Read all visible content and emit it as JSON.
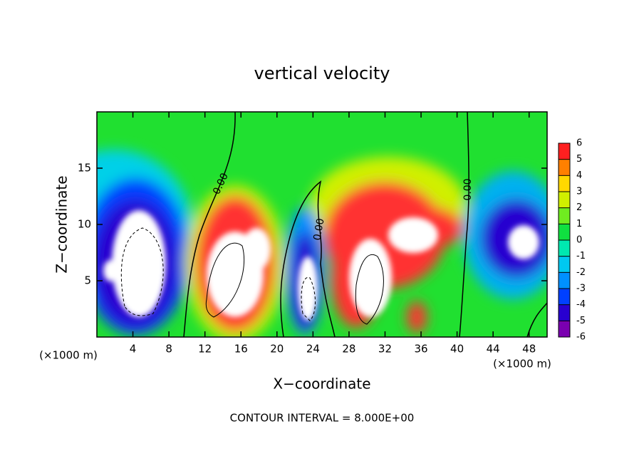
{
  "chart_data": {
    "type": "contour",
    "title": "vertical velocity",
    "xlabel": "X−coordinate",
    "ylabel": "Z−coordinate",
    "xunit": "(×1000 m)",
    "footer": "CONTOUR INTERVAL = 8.000E+00",
    "contour_label": "0.00",
    "xlim": [
      0,
      50
    ],
    "ylim": [
      0,
      20
    ],
    "xticks": [
      4,
      8,
      12,
      16,
      20,
      24,
      28,
      32,
      36,
      40,
      44,
      48
    ],
    "yticks": [
      5,
      10,
      15
    ],
    "colorbar": {
      "ticks": [
        -6,
        -5,
        -4,
        -3,
        -2,
        -1,
        0,
        1,
        2,
        3,
        4,
        5,
        6
      ],
      "colors": [
        "#7a00b0",
        "#2800d0",
        "#0040ff",
        "#0090ff",
        "#00c8f0",
        "#00e8b0",
        "#10e040",
        "#70ec20",
        "#d0f000",
        "#ffd800",
        "#ff8000",
        "#ff2020",
        "#ff9090"
      ]
    }
  }
}
